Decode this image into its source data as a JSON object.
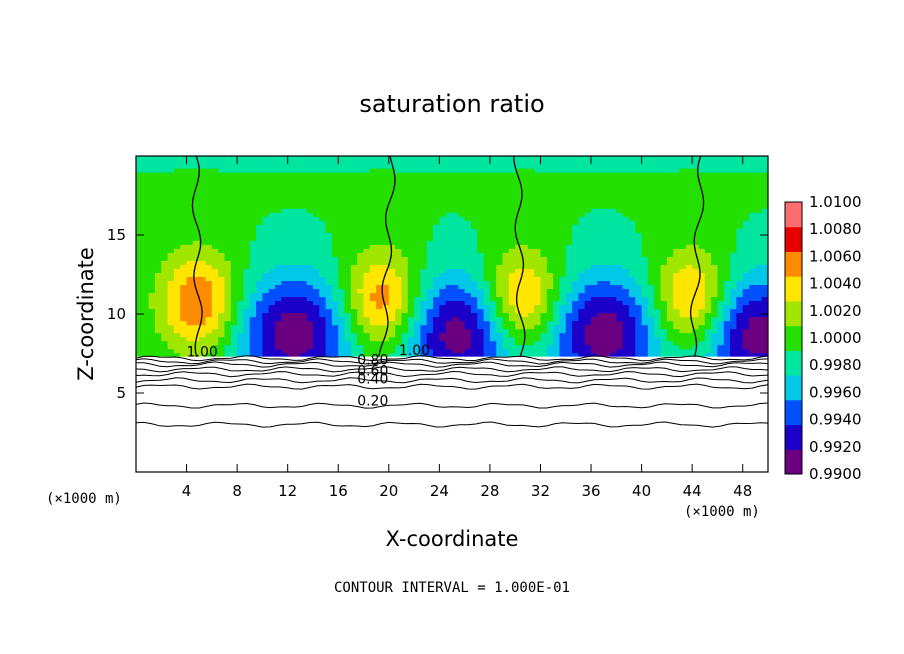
{
  "chart_data": {
    "type": "heatmap",
    "title": "saturation ratio",
    "xlabel": "X-coordinate",
    "ylabel": "Z-coordinate",
    "x_unit_label": "(×1000 m)",
    "x_unit_label_right": "(×1000 m)",
    "xlim": [
      0,
      50
    ],
    "ylim": [
      0,
      20
    ],
    "x_ticks": [
      4,
      8,
      12,
      16,
      20,
      24,
      28,
      32,
      36,
      40,
      44,
      48
    ],
    "y_ticks": [
      5,
      10,
      15
    ],
    "colorbar": {
      "levels": [
        0.99,
        0.992,
        0.994,
        0.996,
        0.998,
        1.0,
        1.002,
        1.004,
        1.006,
        1.008,
        1.01
      ],
      "labels": [
        "0.9900",
        "0.9920",
        "0.9940",
        "0.9960",
        "0.9980",
        "1.0000",
        "1.0020",
        "1.0040",
        "1.0060",
        "1.0080",
        "1.0100"
      ],
      "colors": [
        "#6a0080",
        "#1a00c8",
        "#0050ff",
        "#00c8e6",
        "#00e6a0",
        "#24e000",
        "#a0e600",
        "#ffe600",
        "#ff8c00",
        "#e60000",
        "#ff6e6e"
      ]
    },
    "contour_labels": [
      {
        "text": "1.00",
        "x": 4.0,
        "z": 7.3
      },
      {
        "text": "1.00",
        "x": 20.8,
        "z": 7.4
      },
      {
        "text": "0.80",
        "x": 17.5,
        "z": 6.8
      },
      {
        "text": "0.60",
        "x": 17.5,
        "z": 6.1
      },
      {
        "text": "0.40",
        "x": 17.5,
        "z": 5.6
      },
      {
        "text": "0.20",
        "x": 17.5,
        "z": 4.2
      }
    ],
    "contour_interval_text": "CONTOUR INTERVAL = 1.000E-01",
    "plumes": [
      {
        "x": 5.0,
        "strength": -1
      },
      {
        "x": 12.5,
        "strength": 1
      },
      {
        "x": 19.5,
        "strength": -1
      },
      {
        "x": 25.5,
        "strength": 1
      },
      {
        "x": 30.5,
        "strength": -1
      },
      {
        "x": 37.0,
        "strength": 1
      },
      {
        "x": 44.0,
        "strength": -1
      },
      {
        "x": 49.0,
        "strength": 1
      }
    ]
  }
}
